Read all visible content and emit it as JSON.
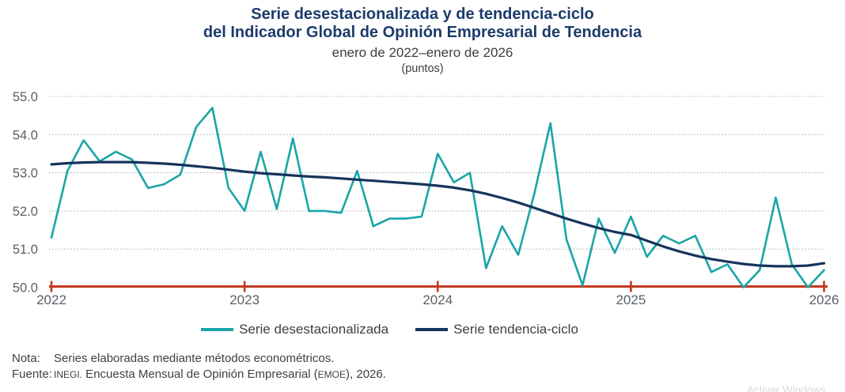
{
  "header": {
    "title_line1": "Serie desestacionalizada y de tendencia-ciclo",
    "title_line2": "del Indicador Global de Opinión Empresarial de Tendencia",
    "subtitle": "enero de 2022–enero de 2026",
    "units": "(puntos)"
  },
  "legend": {
    "items": [
      {
        "label": "Serie desestacionalizada",
        "color": "#1aa5a7"
      },
      {
        "label": "Serie tendencia-ciclo",
        "color": "#16345c"
      }
    ]
  },
  "footnotes": {
    "nota_label": "Nota:",
    "nota_text": "Series elaboradas mediante métodos econométricos.",
    "fuente_label": "Fuente:",
    "fuente_inegi": "INEGI.",
    "fuente_text": " Encuesta Mensual de Opinión Empresarial (",
    "fuente_emoe": "EMOE",
    "fuente_suffix": "), 2026."
  },
  "watermark": "Activar Windows",
  "chart_data": {
    "type": "line",
    "title": "Serie desestacionalizada y de tendencia-ciclo del Indicador Global de Opinión Empresarial de Tendencia",
    "subtitle": "enero de 2022–enero de 2026",
    "ylabel": "puntos",
    "xlabel": "",
    "x_unit": "month",
    "x_range": "2022-01 to 2026-01",
    "x_tick_labels": [
      "2022",
      "2023",
      "2024",
      "2025",
      "2026"
    ],
    "y_ticks": [
      55,
      54,
      53,
      52,
      51,
      50
    ],
    "y_tick_labels": [
      "55.0",
      "54.0",
      "53.0",
      "52.0",
      "51.0",
      "50.0"
    ],
    "ylim": [
      50.0,
      55.0
    ],
    "grid": "dotted horizontal",
    "legend_position": "bottom",
    "axis_color": "#c23a1d",
    "grid_color": "#a9b3c1",
    "tick_label_color": "#596066",
    "series": [
      {
        "name": "Serie desestacionalizada",
        "color": "#1aa5a7",
        "values": [
          51.3,
          53.05,
          53.85,
          53.3,
          53.55,
          53.35,
          52.6,
          52.7,
          52.95,
          54.2,
          54.7,
          52.6,
          52.0,
          53.55,
          52.05,
          53.9,
          52.0,
          52.0,
          51.95,
          53.05,
          51.6,
          51.8,
          51.8,
          51.85,
          53.5,
          52.75,
          53.0,
          50.5,
          51.6,
          50.85,
          52.45,
          54.3,
          51.25,
          50.05,
          51.8,
          50.9,
          51.85,
          50.8,
          51.35,
          51.15,
          51.35,
          50.4,
          50.6,
          50.0,
          50.45,
          52.35,
          50.6,
          50.0,
          50.45
        ]
      },
      {
        "name": "Serie tendencia-ciclo",
        "color": "#16345c",
        "values": [
          53.22,
          53.25,
          53.27,
          53.28,
          53.28,
          53.28,
          53.26,
          53.24,
          53.21,
          53.17,
          53.13,
          53.08,
          53.03,
          52.99,
          52.96,
          52.93,
          52.9,
          52.88,
          52.85,
          52.82,
          52.79,
          52.76,
          52.73,
          52.7,
          52.66,
          52.61,
          52.54,
          52.45,
          52.34,
          52.22,
          52.08,
          51.94,
          51.8,
          51.67,
          51.55,
          51.45,
          51.37,
          51.22,
          51.07,
          50.94,
          50.83,
          50.74,
          50.67,
          50.61,
          50.57,
          50.55,
          50.55,
          50.57,
          50.63
        ]
      }
    ]
  }
}
